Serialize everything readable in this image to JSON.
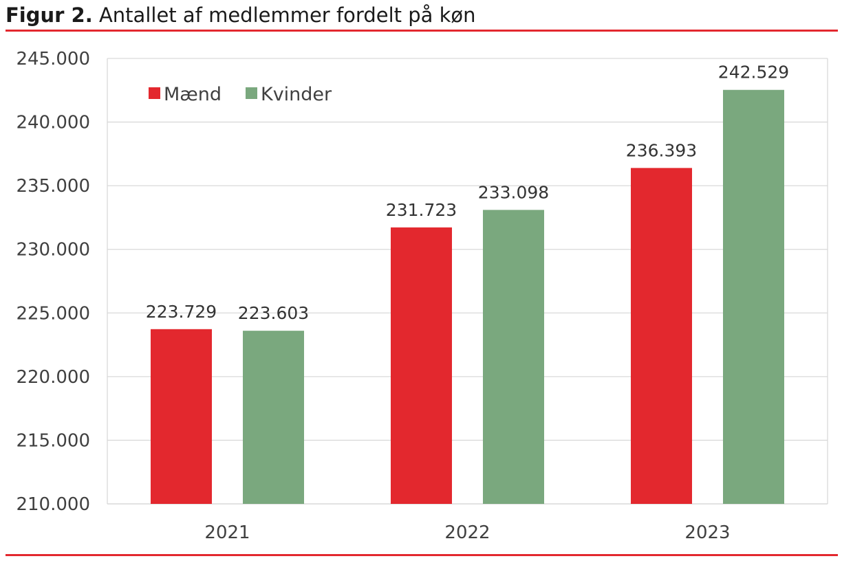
{
  "figure": {
    "label": "Figur 2.",
    "title": "Antallet af medlemmer fordelt på køn"
  },
  "chart_data": {
    "type": "bar",
    "categories": [
      "2021",
      "2022",
      "2023"
    ],
    "series": [
      {
        "name": "Mænd",
        "color": "#e3282e",
        "values": [
          223729,
          231723,
          236393
        ],
        "labels": [
          "223.729",
          "231.723",
          "236.393"
        ]
      },
      {
        "name": "Kvinder",
        "color": "#7aa87e",
        "values": [
          223603,
          233098,
          242529
        ],
        "labels": [
          "223.603",
          "233.098",
          "242.529"
        ]
      }
    ],
    "ylim": [
      210000,
      245000
    ],
    "yticks": [
      210000,
      215000,
      220000,
      225000,
      230000,
      235000,
      240000,
      245000
    ],
    "ytick_labels": [
      "210.000",
      "215.000",
      "220.000",
      "225.000",
      "230.000",
      "235.000",
      "240.000",
      "245.000"
    ],
    "grid": true,
    "legend": "top-left"
  }
}
